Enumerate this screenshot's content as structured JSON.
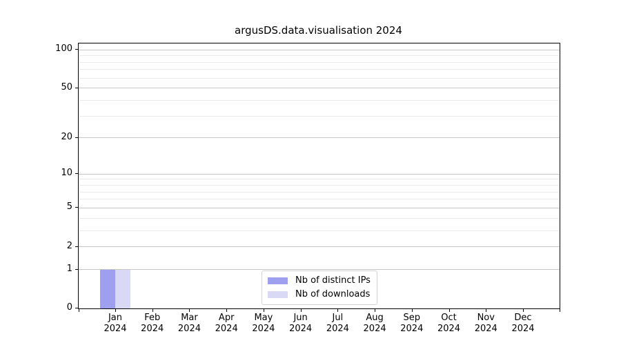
{
  "title": "argusDS.data.visualisation 2024",
  "chart_data": {
    "type": "bar",
    "title": "argusDS.data.visualisation 2024",
    "x_tick_labels": [
      [
        "Jan",
        "2024"
      ],
      [
        "Feb",
        "2024"
      ],
      [
        "Mar",
        "2024"
      ],
      [
        "Apr",
        "2024"
      ],
      [
        "May",
        "2024"
      ],
      [
        "Jun",
        "2024"
      ],
      [
        "Jul",
        "2024"
      ],
      [
        "Aug",
        "2024"
      ],
      [
        "Sep",
        "2024"
      ],
      [
        "Oct",
        "2024"
      ],
      [
        "Nov",
        "2024"
      ],
      [
        "Dec",
        "2024"
      ]
    ],
    "series": [
      {
        "name": "Nb of distinct IPs",
        "color": "#9f9fef",
        "values": [
          1,
          0,
          0,
          0,
          0,
          0,
          0,
          0,
          0,
          0,
          0,
          0
        ]
      },
      {
        "name": "Nb of downloads",
        "color": "#d9d9f6",
        "values": [
          1,
          0,
          0,
          0,
          0,
          0,
          0,
          0,
          0,
          0,
          0,
          0
        ]
      }
    ],
    "y_scale": "log1p",
    "y_axis_max": 112,
    "y_major_ticks": [
      0,
      1,
      2,
      5,
      10,
      20,
      50,
      100
    ],
    "y_minor_ticks": [
      3,
      4,
      6,
      7,
      8,
      9,
      30,
      40,
      60,
      70,
      80,
      90
    ],
    "grid": "both",
    "legend_position": "lower center"
  },
  "colors": {
    "bar_distinct_ips": "#9f9fef",
    "bar_downloads": "#d9d9f6",
    "grid_major": "#c6c6c6",
    "grid_minor": "#ebebeb",
    "spine": "#000000",
    "legend_border": "#d3d3d3",
    "background": "#ffffff",
    "text": "#000000"
  }
}
